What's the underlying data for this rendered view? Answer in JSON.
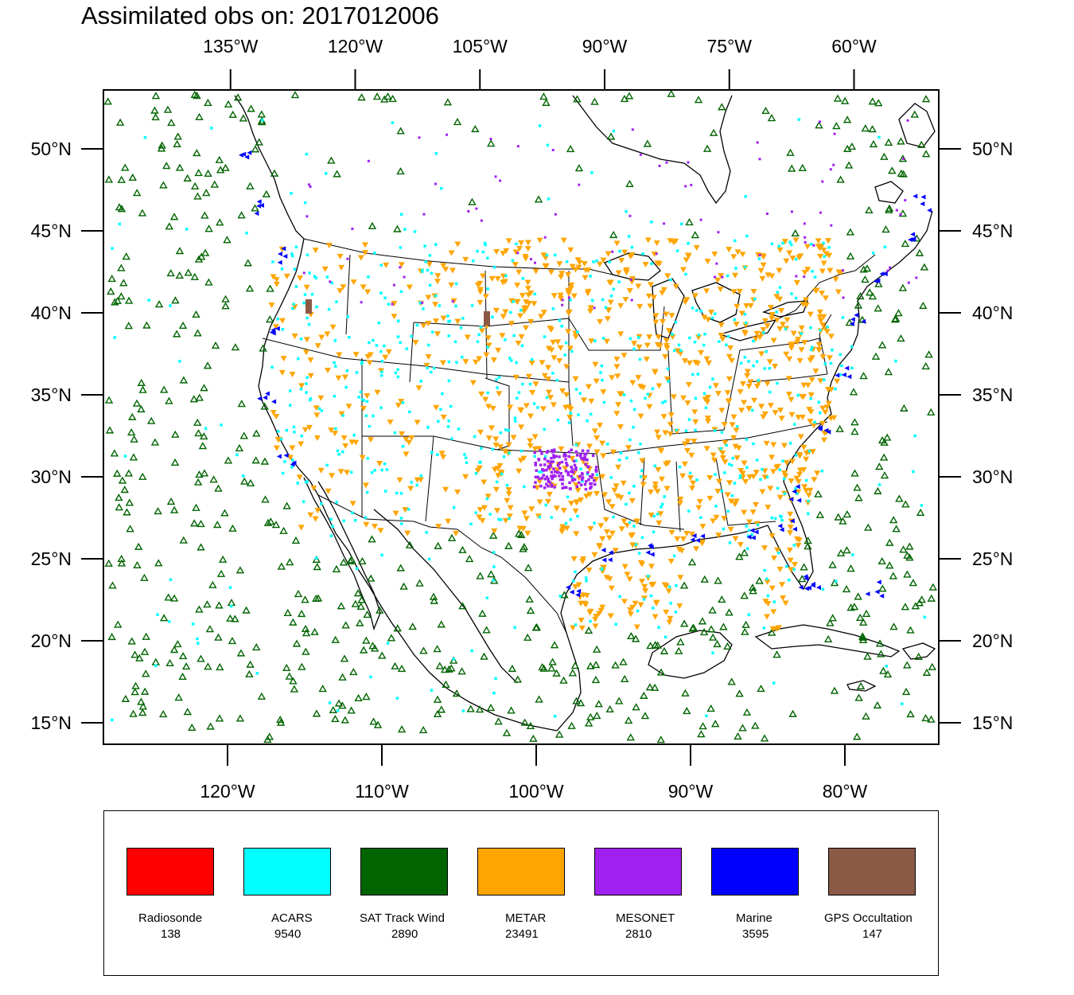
{
  "title": "Assimilated obs on: 2017012006",
  "map": {
    "top_lon_ticks": [
      "135°W",
      "120°W",
      "105°W",
      "90°W",
      "75°W",
      "60°W"
    ],
    "top_lon_values": [
      -135,
      -120,
      -105,
      -90,
      -75,
      -60
    ],
    "bottom_lon_ticks": [
      "120°W",
      "110°W",
      "100°W",
      "90°W",
      "80°W"
    ],
    "bottom_lon_values": [
      -120,
      -110,
      -100,
      -90,
      -80
    ],
    "lat_ticks": [
      "50°N",
      "45°N",
      "40°N",
      "35°N",
      "30°N",
      "25°N",
      "20°N",
      "15°N"
    ],
    "lat_values": [
      50,
      45,
      40,
      35,
      30,
      25,
      20,
      15
    ]
  },
  "legend": {
    "items": [
      {
        "name": "Radiosonde",
        "count": "138",
        "color": "#ff0000"
      },
      {
        "name": "ACARS",
        "count": "9540",
        "color": "#00ffff"
      },
      {
        "name": "SAT Track Wind",
        "count": "2890",
        "color": "#006400"
      },
      {
        "name": "METAR",
        "count": "23491",
        "color": "#ffa500"
      },
      {
        "name": "MESONET",
        "count": "2810",
        "color": "#a020f0"
      },
      {
        "name": "Marine",
        "count": "3595",
        "color": "#0000ff"
      },
      {
        "name": "GPS Occultation",
        "count": "147",
        "color": "#8b5a46"
      }
    ]
  }
}
